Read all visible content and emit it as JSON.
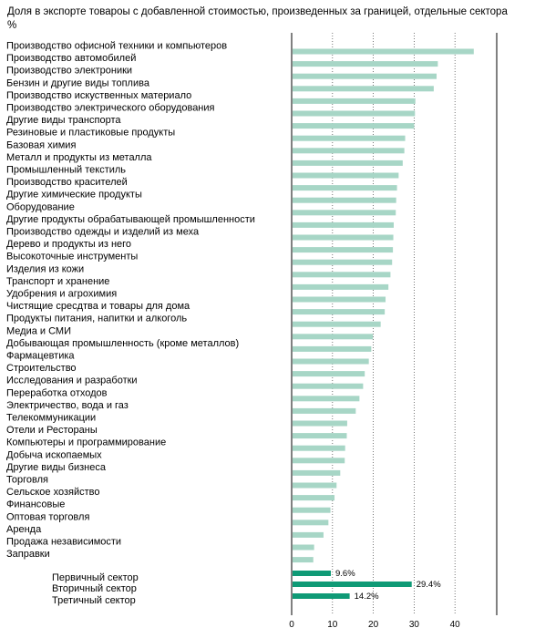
{
  "chart_data": {
    "type": "bar",
    "orientation": "horizontal",
    "title": "Доля в экспорте товароы с добавленной стоимостью, произведенных за границей,  отдельные сектора %",
    "xlim": [
      0,
      50
    ],
    "xticks": [
      0,
      10,
      20,
      30,
      40
    ],
    "xtick_labels": [
      "0",
      "10",
      "20",
      "30",
      "40"
    ],
    "grid": "vertical-dotted",
    "bar_color": "#a7d6c6",
    "sector_bar_color": "#0f9a76",
    "categories": [
      "Производство офисной техники и компьютеров",
      "Производство автомобилей",
      "Производство электроники",
      "Бензин и другие виды топлива",
      "Производство искуственных материало",
      "Производство электрического оборудования",
      "Другие виды транспорта",
      "Резиновые и пластиковые продукты",
      "Базовая химия",
      "Металл и продукты из металла",
      "Промышленный текстиль",
      "Производство красителей",
      "Другие химические продукты",
      "Оборудование",
      "Другие продукты обрабатывающей промышленности",
      "Производство одежды и изделий из меха",
      "Дерево и продукты из него",
      "Высокоточные инструменты",
      "Изделия из кожи",
      "Транспорт и хранение",
      "Удобрения и агрохимия",
      "Чистящие сресдтва и товары для дома",
      "Продукты питания, напитки и алкоголь",
      "Медиа и СМИ",
      "Добывающая промышленность (кроме металлов)",
      "Фармацевтика",
      "Строительство",
      "Исследования и разработки",
      "Переработка отходов",
      "Электричество, вода и газ",
      "Телекоммуникации",
      "Отели и Рестораны",
      "Компьютеры и программирование",
      "Добыча ископаемых",
      "Другие виды бизнеса",
      "Торговля",
      "Сельское хозяйство",
      "Финансовые",
      "Оптовая торговля",
      "Аренда",
      "Продажа независимости",
      "Заправки"
    ],
    "values": [
      44.6,
      35.8,
      35.5,
      34.8,
      30.3,
      30.2,
      30.0,
      27.8,
      27.6,
      27.2,
      26.2,
      25.8,
      25.6,
      25.5,
      25.0,
      24.9,
      24.8,
      24.6,
      24.2,
      23.7,
      23.0,
      22.8,
      21.8,
      19.9,
      19.5,
      18.9,
      17.9,
      17.5,
      16.6,
      15.7,
      13.6,
      13.5,
      13.1,
      13.0,
      11.9,
      11.0,
      10.5,
      9.5,
      9.0,
      7.8,
      5.5,
      5.3
    ],
    "sectors": [
      {
        "name": "Первичный сектор",
        "value": 9.6,
        "label": "9.6%"
      },
      {
        "name": "Вторичный сектор",
        "value": 29.4,
        "label": "29.4%"
      },
      {
        "name": "Третичный сектор",
        "value": 14.2,
        "label": "14.2%"
      }
    ]
  }
}
